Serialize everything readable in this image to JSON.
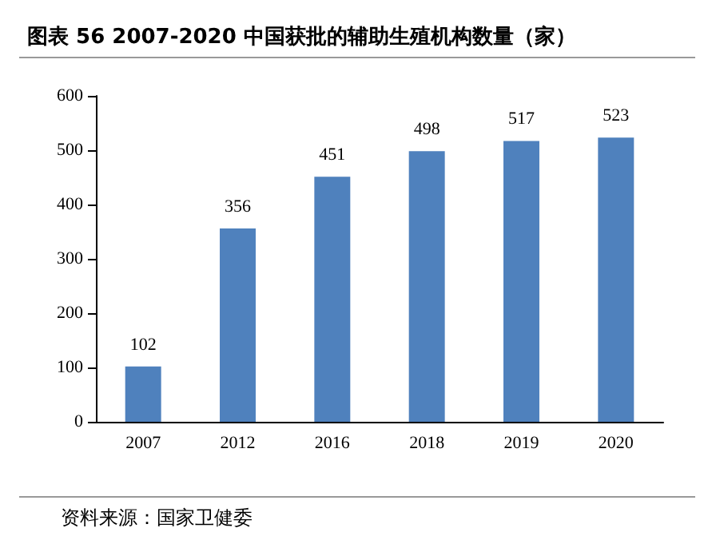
{
  "chart_data": {
    "type": "bar",
    "title": "图表 56 2007-2020 中国获批的辅助生殖机构数量（家）",
    "categories": [
      "2007",
      "2012",
      "2016",
      "2018",
      "2019",
      "2020"
    ],
    "values": [
      102,
      356,
      451,
      498,
      517,
      523
    ],
    "color": "#4f81bd",
    "ylim": [
      0,
      600
    ],
    "yticks": [
      0,
      100,
      200,
      300,
      400,
      500,
      600
    ],
    "grid": false,
    "data_labels": true,
    "annotations": [
      "资料来源：国家卫健委"
    ]
  }
}
